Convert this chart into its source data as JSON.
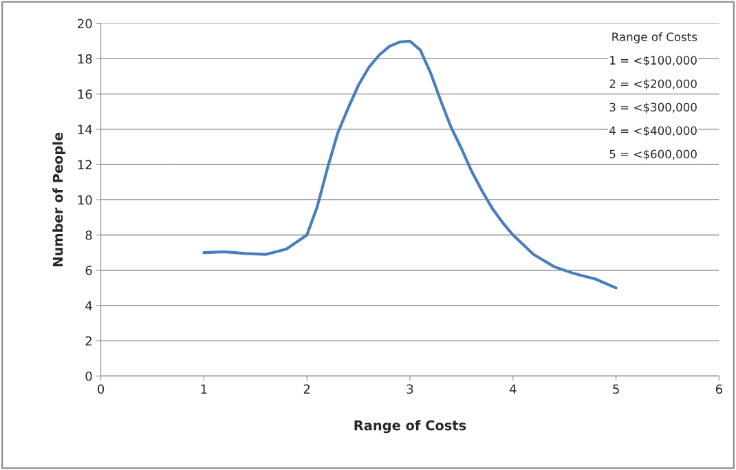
{
  "chart_data": {
    "type": "line",
    "xlabel": "Range of Costs",
    "ylabel": "Number of People",
    "x": [
      1,
      1.2,
      1.4,
      1.6,
      1.8,
      2,
      2.1,
      2.2,
      2.3,
      2.4,
      2.5,
      2.6,
      2.7,
      2.8,
      2.9,
      3,
      3.1,
      3.2,
      3.3,
      3.4,
      3.5,
      3.6,
      3.7,
      3.8,
      3.9,
      4,
      4.2,
      4.4,
      4.6,
      4.8,
      5
    ],
    "series": [
      {
        "color": "#4a7ebb",
        "values": [
          7,
          7.05,
          6.95,
          6.9,
          7.2,
          8,
          9.6,
          11.8,
          13.8,
          15.2,
          16.5,
          17.5,
          18.2,
          18.7,
          18.95,
          19,
          18.5,
          17.2,
          15.6,
          14.1,
          12.9,
          11.6,
          10.5,
          9.5,
          8.7,
          8,
          6.9,
          6.2,
          5.8,
          5.5,
          5
        ]
      }
    ],
    "xlim": [
      0,
      6
    ],
    "xticks": [
      0,
      1,
      2,
      3,
      4,
      5,
      6
    ],
    "ylim": [
      0,
      20
    ],
    "yticks": [
      0,
      2,
      4,
      6,
      8,
      10,
      12,
      14,
      16,
      18,
      20
    ],
    "grid": "y",
    "legend": false,
    "marker": "none",
    "line_style": "solid",
    "annotations": [
      "Range of Costs",
      "1 = <$100,000",
      "2 = <$200,000",
      "3 = <$300,000",
      "4 = <$400,000",
      "5 = <$600,000"
    ]
  }
}
